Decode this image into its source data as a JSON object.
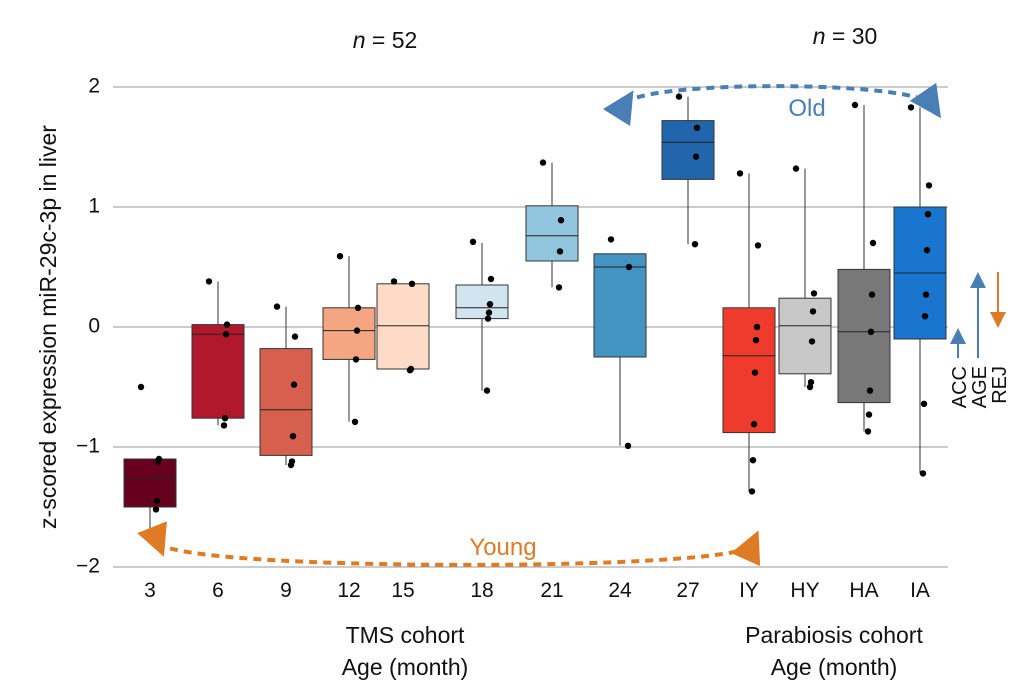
{
  "chart_data": {
    "type": "box",
    "ylabel": "z-scored expression miR-29c-3p in liver",
    "ylim": [
      -2,
      2
    ],
    "yticks": [
      -2,
      -1,
      0,
      1,
      2
    ],
    "ytick_labels": [
      "−2",
      "−1",
      "0",
      "1",
      "2"
    ],
    "grid": "horizontal",
    "groups": [
      {
        "name": "TMS",
        "n_label": "n = 52",
        "cohort_label": "TMS cohort",
        "axis_label": "Age (month)",
        "boxes": [
          {
            "category": "3",
            "color": "#67001f",
            "q1": -1.5,
            "median": -1.27,
            "q3": -1.1,
            "whisker_low": -1.77,
            "whisker_high": -1.1,
            "points": [
              -0.5,
              -1.1,
              -1.12,
              -1.45,
              -1.52,
              -1.77
            ]
          },
          {
            "category": "6",
            "color": "#b2182b",
            "q1": -0.76,
            "median": -0.06,
            "q3": 0.02,
            "whisker_low": -0.82,
            "whisker_high": 0.38,
            "points": [
              0.38,
              0.02,
              -0.06,
              -0.76,
              -0.82
            ]
          },
          {
            "category": "9",
            "color": "#d6604d",
            "q1": -1.07,
            "median": -0.69,
            "q3": -0.18,
            "whisker_low": -1.15,
            "whisker_high": 0.17,
            "points": [
              0.17,
              -0.08,
              -0.48,
              -0.91,
              -1.12,
              -1.15
            ]
          },
          {
            "category": "12",
            "color": "#f4a582",
            "q1": -0.27,
            "median": -0.03,
            "q3": 0.16,
            "whisker_low": -0.79,
            "whisker_high": 0.59,
            "points": [
              0.59,
              0.16,
              -0.03,
              -0.27,
              -0.79
            ]
          },
          {
            "category": "15",
            "color": "#fddbc7",
            "q1": -0.35,
            "median": 0.01,
            "q3": 0.36,
            "whisker_low": -0.35,
            "whisker_high": 0.36,
            "points": [
              0.38,
              0.36,
              -0.35,
              -0.36
            ]
          },
          {
            "category": "18",
            "color": "#d1e5f0",
            "q1": 0.07,
            "median": 0.16,
            "q3": 0.35,
            "whisker_low": -0.53,
            "whisker_high": 0.7,
            "points": [
              0.71,
              0.4,
              0.19,
              0.12,
              0.07,
              -0.53
            ]
          },
          {
            "category": "21",
            "color": "#92c5de",
            "q1": 0.55,
            "median": 0.76,
            "q3": 1.01,
            "whisker_low": 0.33,
            "whisker_high": 1.37,
            "points": [
              1.37,
              0.89,
              0.63,
              0.33
            ]
          },
          {
            "category": "24",
            "color": "#4393c3",
            "q1": -0.25,
            "median": 0.5,
            "q3": 0.61,
            "whisker_low": -0.99,
            "whisker_high": 0.61,
            "points": [
              0.73,
              0.5,
              -0.99
            ]
          },
          {
            "category": "27",
            "color": "#2166ac",
            "q1": 1.23,
            "median": 1.54,
            "q3": 1.72,
            "whisker_low": 0.69,
            "whisker_high": 1.92,
            "points": [
              1.92,
              1.66,
              1.42,
              0.69
            ]
          }
        ]
      },
      {
        "name": "Parabiosis",
        "n_label": "n = 30",
        "cohort_label": "Parabiosis cohort",
        "axis_label": "Age (month)",
        "boxes": [
          {
            "category": "IY",
            "color": "#ef3b2c",
            "q1": -0.88,
            "median": -0.24,
            "q3": 0.16,
            "whisker_low": -1.37,
            "whisker_high": 1.28,
            "points": [
              1.28,
              0.68,
              0.0,
              -0.11,
              -0.38,
              -0.81,
              -1.11,
              -1.37
            ]
          },
          {
            "category": "HY",
            "color": "#c8c8c8",
            "q1": -0.39,
            "median": 0.01,
            "q3": 0.24,
            "whisker_low": -0.5,
            "whisker_high": 1.32,
            "points": [
              1.32,
              0.28,
              0.13,
              -0.12,
              -0.46,
              -0.5
            ]
          },
          {
            "category": "HA",
            "color": "#787878",
            "q1": -0.63,
            "median": -0.04,
            "q3": 0.48,
            "whisker_low": -0.87,
            "whisker_high": 1.85,
            "points": [
              1.85,
              0.7,
              0.27,
              -0.04,
              -0.53,
              -0.73,
              -0.87
            ]
          },
          {
            "category": "IA",
            "color": "#1a75cf",
            "q1": -0.1,
            "median": 0.45,
            "q3": 1.0,
            "whisker_low": -1.22,
            "whisker_high": 1.83,
            "points": [
              1.83,
              1.18,
              0.94,
              0.64,
              0.27,
              0.09,
              -0.64,
              -1.22
            ]
          }
        ]
      }
    ],
    "annotations": {
      "old_label": "Old",
      "young_label": "Young",
      "old_color": "#4a7fb5",
      "young_color": "#e07b25",
      "side_arrows": [
        {
          "label": "ACC",
          "color": "#4a7fb5",
          "direction": "up"
        },
        {
          "label": "AGE",
          "color": "#4a7fb5",
          "direction": "up"
        },
        {
          "label": "REJ",
          "color": "#e07b25",
          "direction": "down"
        }
      ]
    }
  }
}
